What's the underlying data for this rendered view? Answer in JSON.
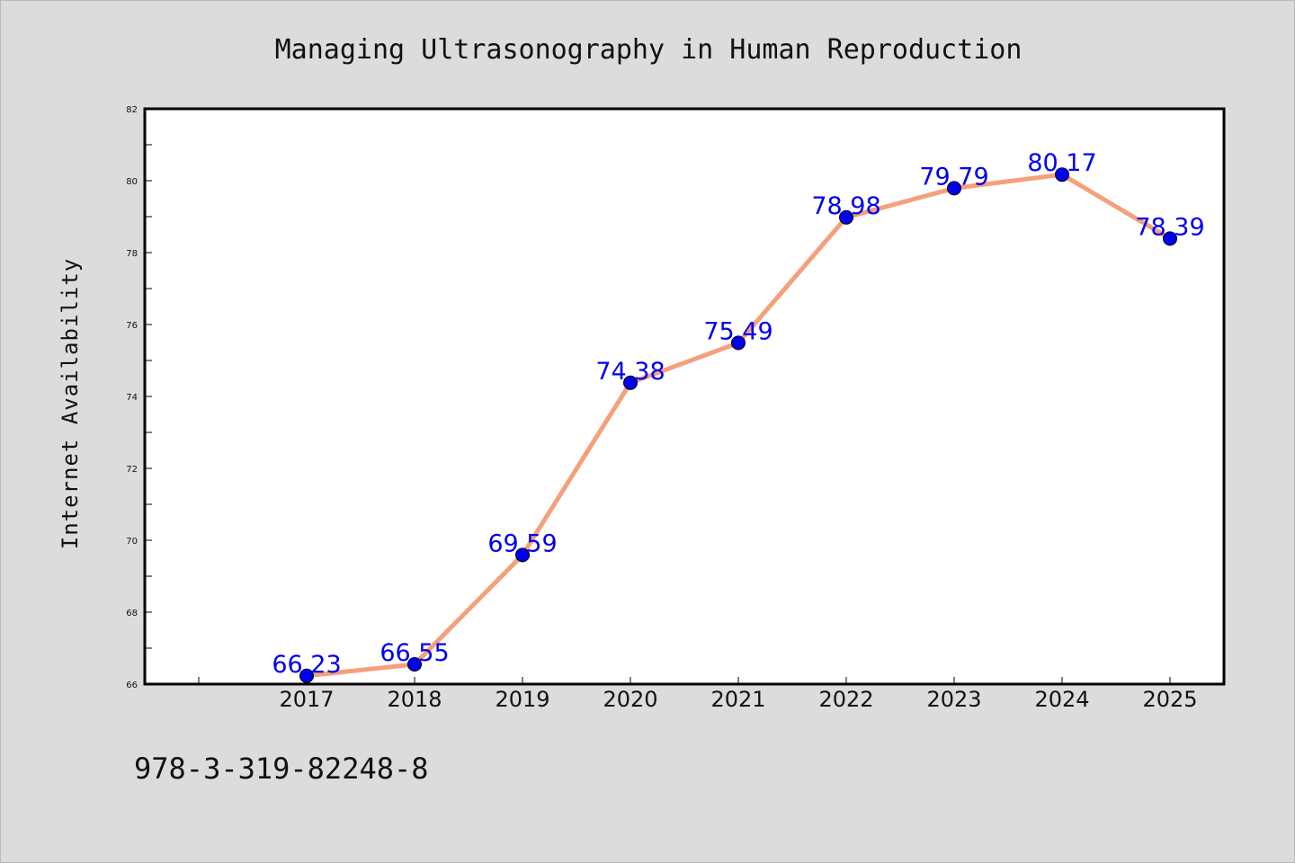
{
  "chart_data": {
    "type": "line",
    "title": "Managing Ultrasonography in Human Reproduction",
    "ylabel": "Internet Availability",
    "xlabel": "",
    "categories": [
      "2017",
      "2018",
      "2019",
      "2020",
      "2021",
      "2022",
      "2023",
      "2024",
      "2025"
    ],
    "series": [
      {
        "values": [
          66.23,
          66.55,
          69.59,
          74.38,
          75.49,
          78.98,
          79.79,
          80.17,
          78.39
        ],
        "labels": [
          "66.23",
          "66.55",
          "69.59",
          "74.38",
          "75.49",
          "78.98",
          "79.79",
          "80.17",
          "78.39"
        ]
      }
    ],
    "ylim": [
      66,
      82
    ],
    "yticks": [
      66,
      68,
      70,
      72,
      74,
      76,
      78,
      80,
      82
    ],
    "ytick_labels": [
      "66",
      "68",
      "70",
      "72",
      "74",
      "76",
      "78",
      "80",
      "82"
    ],
    "grid": false,
    "line_color": "#f4a07a",
    "marker_color": "#0000ee",
    "label_color": "#0000ee"
  },
  "footer_text": "978-3-319-82248-8"
}
